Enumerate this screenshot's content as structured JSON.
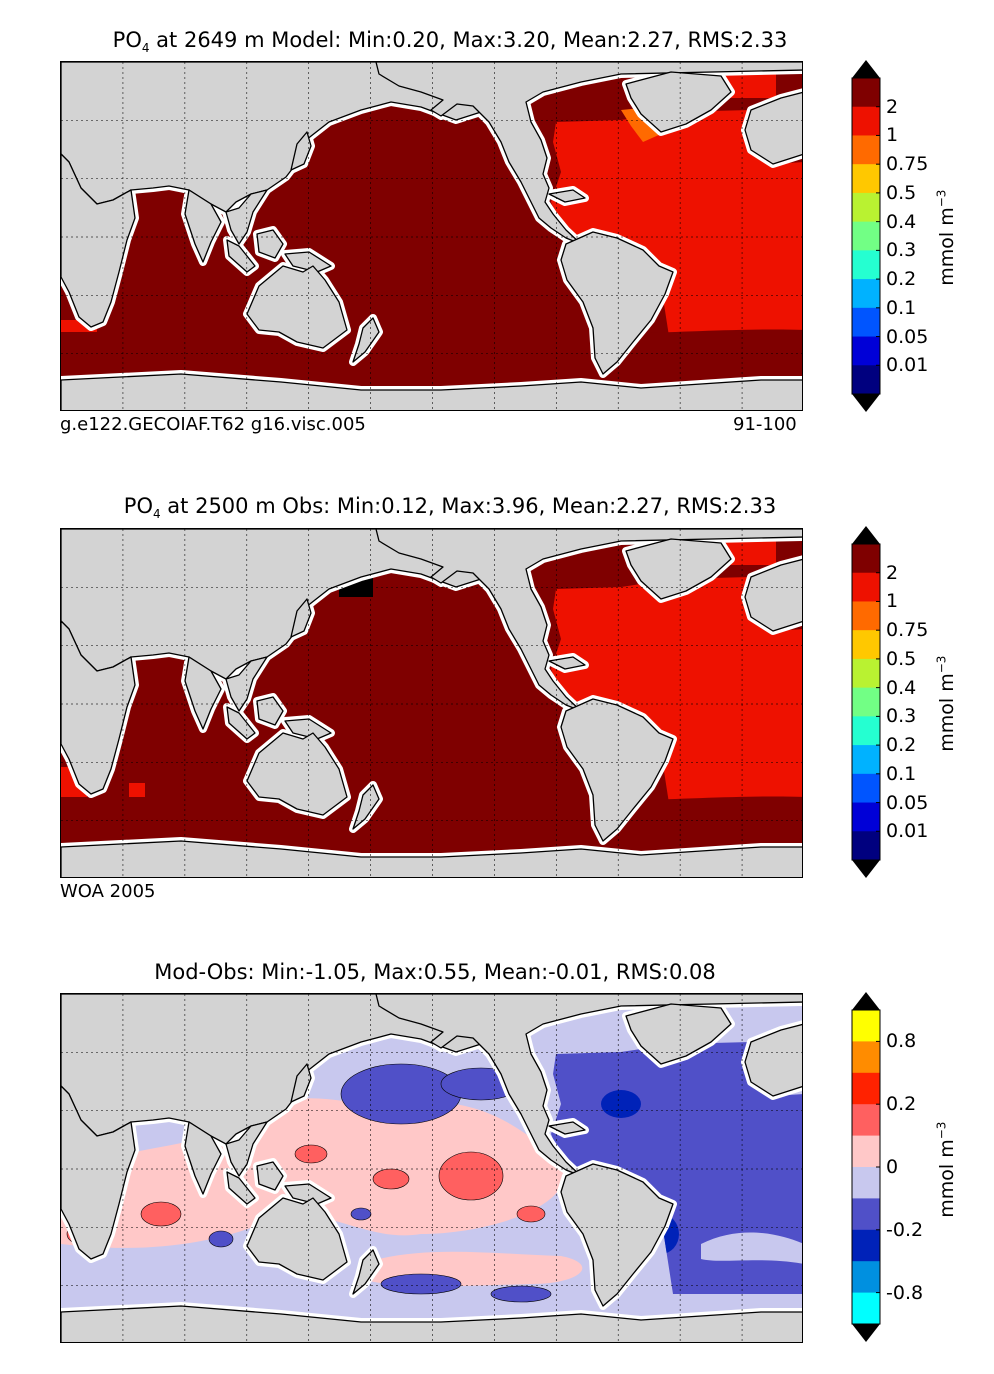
{
  "panels": [
    {
      "id": "model",
      "title_prefix": "PO",
      "title_sub": "4",
      "title_rest": "  at 2649 m Model: Min:0.20, Max:3.20, Mean:2.27, RMS:2.33",
      "caption_left": "g.e122.GECOIAF.T62 g16.visc.005",
      "caption_right": "91-100",
      "colorbar_ticks": [
        "2",
        "1",
        "0.75",
        "0.5",
        "0.4",
        "0.3",
        "0.2",
        "0.1",
        "0.05",
        "0.01"
      ],
      "colorbar_colors": [
        "#7f0000",
        "#ee1100",
        "#ff6a00",
        "#ffc800",
        "#b9f231",
        "#72ff85",
        "#25ffd1",
        "#00b2ff",
        "#0055ff",
        "#0000d7",
        "#00007f"
      ],
      "unit": "mmol m",
      "unit_exp": "−3"
    },
    {
      "id": "obs",
      "title_prefix": "PO",
      "title_sub": "4",
      "title_rest": "  at 2500 m Obs: Min:0.12, Max:3.96, Mean:2.27, RMS:2.33",
      "caption_left": "WOA 2005",
      "caption_right": "",
      "colorbar_ticks": [
        "2",
        "1",
        "0.75",
        "0.5",
        "0.4",
        "0.3",
        "0.2",
        "0.1",
        "0.05",
        "0.01"
      ],
      "colorbar_colors": [
        "#7f0000",
        "#ee1100",
        "#ff6a00",
        "#ffc800",
        "#b9f231",
        "#72ff85",
        "#25ffd1",
        "#00b2ff",
        "#0055ff",
        "#0000d7",
        "#00007f"
      ],
      "unit": "mmol m",
      "unit_exp": "−3"
    },
    {
      "id": "diff",
      "title_prefix": "Mod-Obs: Min:-1.05, Max:0.55, Mean:-0.01, RMS:0.08",
      "title_sub": "",
      "title_rest": "",
      "caption_left": "",
      "caption_right": "",
      "colorbar_ticks": [
        "0.8",
        "0.2",
        "0",
        "-0.2",
        "-0.8"
      ],
      "colorbar_colors": [
        "#ffff00",
        "#ff8c00",
        "#ff2200",
        "#ff6060",
        "#ffc8c8",
        "#c8c8ee",
        "#5050c8",
        "#0022b8",
        "#0090e0",
        "#00ffff"
      ],
      "unit": "mmol m",
      "unit_exp": "−3"
    }
  ],
  "chart_data": [
    {
      "type": "heatmap",
      "title": "PO4 at 2649 m Model: Min:0.20, Max:3.20, Mean:2.27, RMS:2.33",
      "stats": {
        "min": 0.2,
        "max": 3.2,
        "mean": 2.27,
        "rms": 2.33
      },
      "depth_m": 2649,
      "colorbar_levels": [
        0.01,
        0.05,
        0.1,
        0.2,
        0.3,
        0.4,
        0.5,
        0.75,
        1,
        2
      ],
      "regions": [
        {
          "name": "Pacific / Indian / Southern",
          "level": ">2"
        },
        {
          "name": "Atlantic",
          "level": "1-2"
        },
        {
          "name": "Labrador Sea",
          "level": "0.75-1"
        }
      ]
    },
    {
      "type": "heatmap",
      "title": "PO4 at 2500 m Obs: Min:0.12, Max:3.96, Mean:2.27, RMS:2.33",
      "stats": {
        "min": 0.12,
        "max": 3.96,
        "mean": 2.27,
        "rms": 2.33
      },
      "depth_m": 2500,
      "colorbar_levels": [
        0.01,
        0.05,
        0.1,
        0.2,
        0.3,
        0.4,
        0.5,
        0.75,
        1,
        2
      ],
      "regions": [
        {
          "name": "Pacific / Indian / Southern",
          "level": ">2"
        },
        {
          "name": "Atlantic",
          "level": "1-2"
        }
      ]
    },
    {
      "type": "heatmap",
      "title": "Mod-Obs: Min:-1.05, Max:0.55, Mean:-0.01, RMS:0.08",
      "stats": {
        "min": -1.05,
        "max": 0.55,
        "mean": -0.01,
        "rms": 0.08
      },
      "colorbar_levels": [
        -0.8,
        -0.2,
        0,
        0.2,
        0.8
      ],
      "regions": [
        {
          "name": "North Atlantic",
          "level": "negative"
        },
        {
          "name": "Pacific / Indian",
          "level": "mixed, mostly positive"
        },
        {
          "name": "Southern Ocean",
          "level": "slightly negative"
        }
      ]
    }
  ]
}
